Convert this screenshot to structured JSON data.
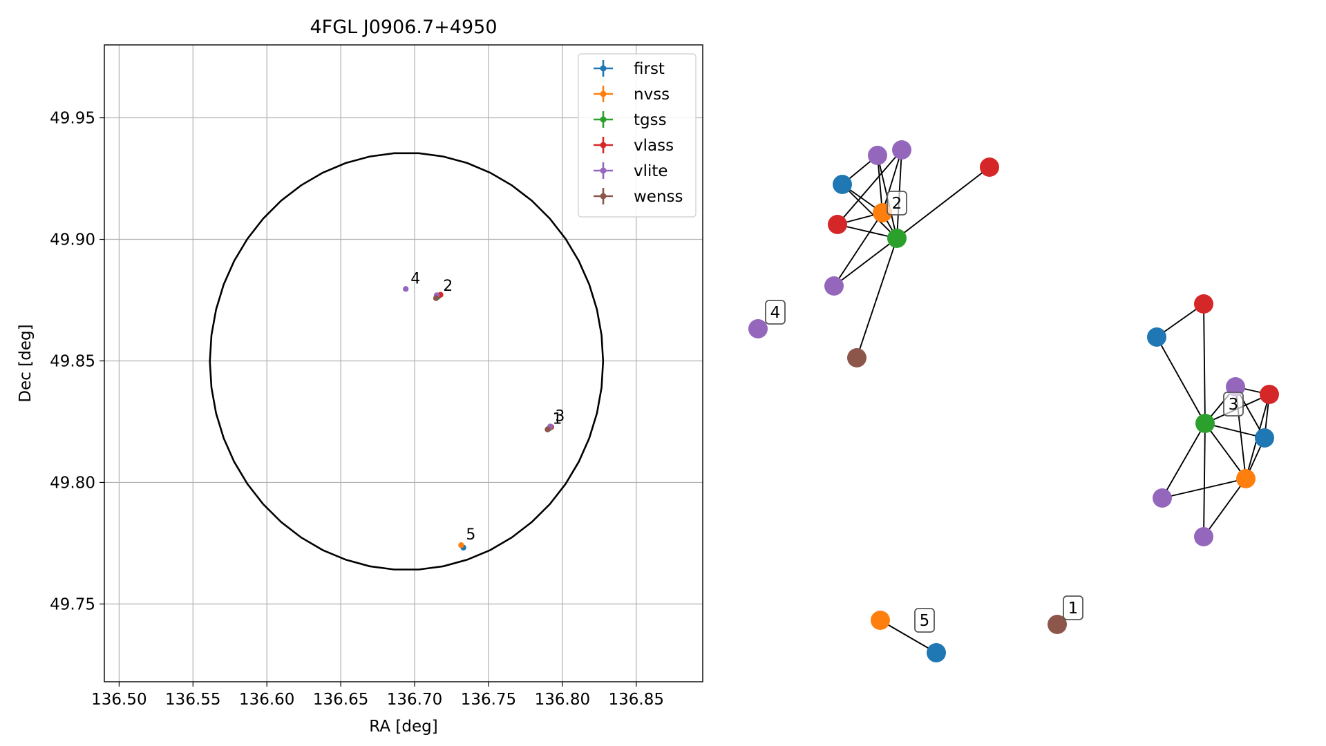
{
  "chart_data": [
    {
      "type": "scatter",
      "title": "4FGL J0906.7+4950",
      "xlabel": "RA [deg]",
      "ylabel": "Dec [deg]",
      "xlim": [
        136.49,
        136.895
      ],
      "ylim": [
        49.718,
        49.98
      ],
      "grid": true,
      "xticks": [
        136.5,
        136.55,
        136.6,
        136.65,
        136.7,
        136.75,
        136.8,
        136.85
      ],
      "xtick_labels": [
        "136.50",
        "136.55",
        "136.60",
        "136.65",
        "136.70",
        "136.75",
        "136.80",
        "136.85"
      ],
      "yticks": [
        49.75,
        49.8,
        49.85,
        49.9,
        49.95
      ],
      "ytick_labels": [
        "49.75",
        "49.80",
        "49.85",
        "49.90",
        "49.95"
      ],
      "legend_position": "upper right",
      "colors": {
        "first": "#1f77b4",
        "nvss": "#ff7f0e",
        "tgss": "#2ca02c",
        "vlass": "#d62728",
        "vlite": "#9467bd",
        "wenss": "#8c564b"
      },
      "series": [
        {
          "name": "first",
          "points": [
            {
              "x": 136.791,
              "y": 49.8222
            },
            {
              "x": 136.733,
              "y": 49.7732
            },
            {
              "x": 136.716,
              "y": 49.8766
            }
          ]
        },
        {
          "name": "nvss",
          "points": [
            {
              "x": 136.7915,
              "y": 49.8226
            },
            {
              "x": 136.7315,
              "y": 49.7742
            },
            {
              "x": 136.7155,
              "y": 49.8768
            }
          ]
        },
        {
          "name": "tgss",
          "points": [
            {
              "x": 136.7912,
              "y": 49.8224
            },
            {
              "x": 136.7158,
              "y": 49.8764
            }
          ]
        },
        {
          "name": "vlass",
          "points": [
            {
              "x": 136.7925,
              "y": 49.8228
            },
            {
              "x": 136.7175,
              "y": 49.8772
            }
          ]
        },
        {
          "name": "vlite",
          "points": [
            {
              "x": 136.7918,
              "y": 49.823
            },
            {
              "x": 136.694,
              "y": 49.8796
            },
            {
              "x": 136.715,
              "y": 49.877
            }
          ]
        },
        {
          "name": "wenss",
          "points": [
            {
              "x": 136.79,
              "y": 49.8218
            },
            {
              "x": 136.7145,
              "y": 49.8758
            }
          ]
        }
      ],
      "source_labels": [
        {
          "text": "4",
          "x": 136.694,
          "y": 49.8796
        },
        {
          "text": "2",
          "x": 136.716,
          "y": 49.8766
        },
        {
          "text": "1",
          "x": 136.79,
          "y": 49.8218
        },
        {
          "text": "3",
          "x": 136.7918,
          "y": 49.823
        },
        {
          "text": "5",
          "x": 136.7315,
          "y": 49.7742
        }
      ],
      "circle": {
        "ra": 136.6945,
        "dec": 49.8498,
        "radius_dec": 0.0858
      }
    },
    {
      "type": "network",
      "colors": {
        "first": "#1f77b4",
        "nvss": "#ff7f0e",
        "tgss": "#2ca02c",
        "vlass": "#d62728",
        "vlite": "#9467bd",
        "wenss": "#8c564b"
      },
      "labels": [
        "1",
        "2",
        "3",
        "4",
        "5"
      ],
      "nodes": [
        {
          "id": "c2-first",
          "catalog": "first"
        },
        {
          "id": "c2-nvss",
          "catalog": "nvss"
        },
        {
          "id": "c2-tgss",
          "catalog": "tgss"
        },
        {
          "id": "c2-vlass-a",
          "catalog": "vlass"
        },
        {
          "id": "c2-vlass-b",
          "catalog": "vlass"
        },
        {
          "id": "c2-vlite-a",
          "catalog": "vlite"
        },
        {
          "id": "c2-vlite-b",
          "catalog": "vlite"
        },
        {
          "id": "c2-vlite-c",
          "catalog": "vlite"
        },
        {
          "id": "c2-wenss",
          "catalog": "wenss"
        },
        {
          "id": "c4-vlite",
          "catalog": "vlite"
        },
        {
          "id": "c3-vlass-a",
          "catalog": "vlass"
        },
        {
          "id": "c3-first-a",
          "catalog": "first"
        },
        {
          "id": "c3-vlite-a",
          "catalog": "vlite"
        },
        {
          "id": "c3-vlass-b",
          "catalog": "vlass"
        },
        {
          "id": "c3-tgss",
          "catalog": "tgss"
        },
        {
          "id": "c3-first-b",
          "catalog": "first"
        },
        {
          "id": "c3-nvss",
          "catalog": "nvss"
        },
        {
          "id": "c3-vlite-b",
          "catalog": "vlite"
        },
        {
          "id": "c3-vlite-c",
          "catalog": "vlite"
        },
        {
          "id": "c5-nvss",
          "catalog": "nvss"
        },
        {
          "id": "c5-first",
          "catalog": "first"
        },
        {
          "id": "c1-wenss",
          "catalog": "wenss"
        }
      ],
      "edges": [
        [
          "c2-first",
          "c2-nvss"
        ],
        [
          "c2-first",
          "c2-tgss"
        ],
        [
          "c2-first",
          "c2-vlite-a"
        ],
        [
          "c2-vlite-a",
          "c2-nvss"
        ],
        [
          "c2-vlite-a",
          "c2-tgss"
        ],
        [
          "c2-vlite-b",
          "c2-nvss"
        ],
        [
          "c2-vlite-b",
          "c2-tgss"
        ],
        [
          "c2-vlite-b",
          "c2-vlass-a"
        ],
        [
          "c2-vlass-a",
          "c2-nvss"
        ],
        [
          "c2-vlass-a",
          "c2-tgss"
        ],
        [
          "c2-nvss",
          "c2-tgss"
        ],
        [
          "c2-nvss",
          "c2-vlite-c"
        ],
        [
          "c2-tgss",
          "c2-vlite-c"
        ],
        [
          "c2-tgss",
          "c2-vlass-b"
        ],
        [
          "c2-tgss",
          "c2-wenss"
        ],
        [
          "c3-first-a",
          "c3-vlass-a"
        ],
        [
          "c3-first-a",
          "c3-tgss"
        ],
        [
          "c3-vlass-a",
          "c3-tgss"
        ],
        [
          "c3-vlite-a",
          "c3-vlass-b"
        ],
        [
          "c3-vlite-a",
          "c3-tgss"
        ],
        [
          "c3-vlite-a",
          "c3-first-b"
        ],
        [
          "c3-vlite-a",
          "c3-nvss"
        ],
        [
          "c3-vlass-b",
          "c3-tgss"
        ],
        [
          "c3-vlass-b",
          "c3-first-b"
        ],
        [
          "c3-vlass-b",
          "c3-nvss"
        ],
        [
          "c3-tgss",
          "c3-first-b"
        ],
        [
          "c3-tgss",
          "c3-nvss"
        ],
        [
          "c3-tgss",
          "c3-vlite-b"
        ],
        [
          "c3-tgss",
          "c3-vlite-c"
        ],
        [
          "c3-first-b",
          "c3-nvss"
        ],
        [
          "c3-nvss",
          "c3-vlite-b"
        ],
        [
          "c3-nvss",
          "c3-vlite-c"
        ],
        [
          "c5-nvss",
          "c5-first"
        ]
      ]
    }
  ]
}
